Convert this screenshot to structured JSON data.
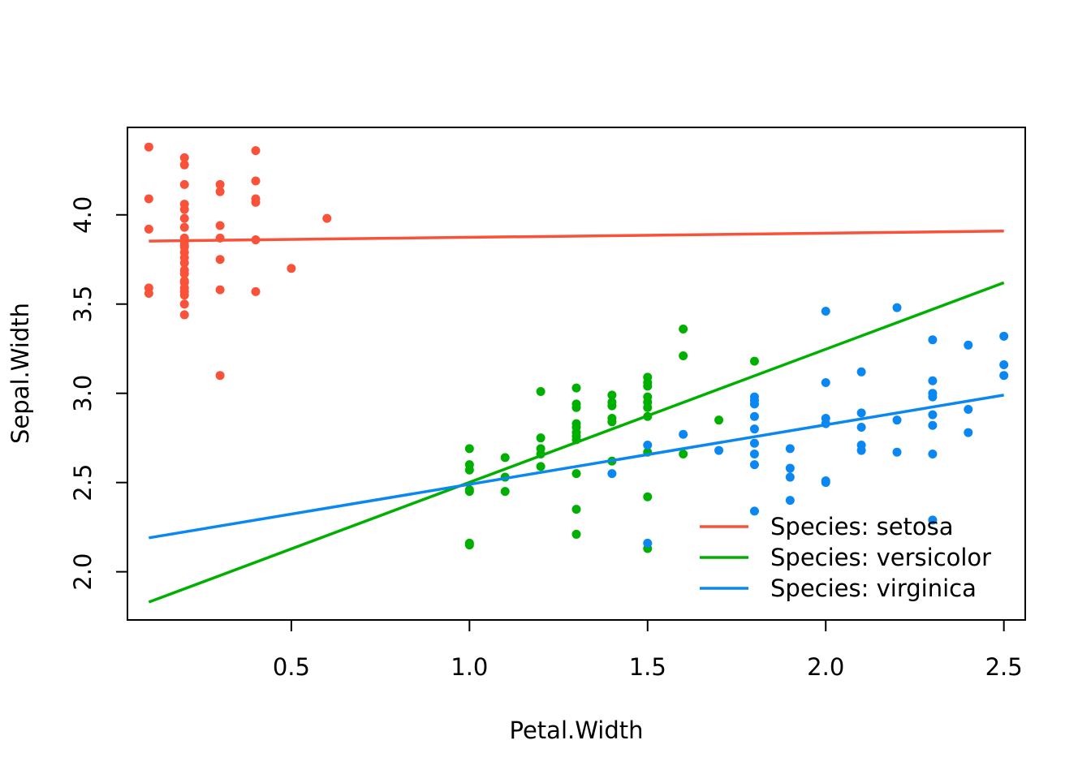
{
  "chart_data": {
    "type": "scatter",
    "title": "",
    "xlabel": "Petal.Width",
    "ylabel": "Sepal.Width",
    "xlim": [
      0.04,
      2.56
    ],
    "ylim": [
      1.73,
      4.49
    ],
    "x_ticks": [
      0.5,
      1.0,
      1.5,
      2.0,
      2.5
    ],
    "x_tick_labels": [
      "0.5",
      "1.0",
      "1.5",
      "2.0",
      "2.5"
    ],
    "y_ticks": [
      2.0,
      2.5,
      3.0,
      3.5,
      4.0
    ],
    "y_tick_labels": [
      "2.0",
      "2.5",
      "3.0",
      "3.5",
      "4.0"
    ],
    "grid": false,
    "legend_position": "bottom-right",
    "series": [
      {
        "name": "Species: setosa",
        "color": "#F8523A",
        "fit_line": [
          [
            0.1,
            3.853
          ],
          [
            2.5,
            3.909
          ]
        ],
        "points": [
          [
            0.1,
            4.38
          ],
          [
            0.1,
            4.09
          ],
          [
            0.1,
            3.92
          ],
          [
            0.1,
            3.59
          ],
          [
            0.1,
            3.56
          ],
          [
            0.2,
            4.32
          ],
          [
            0.2,
            4.28
          ],
          [
            0.2,
            4.17
          ],
          [
            0.2,
            4.06
          ],
          [
            0.2,
            4.03
          ],
          [
            0.2,
            3.98
          ],
          [
            0.2,
            3.93
          ],
          [
            0.2,
            3.87
          ],
          [
            0.2,
            3.85
          ],
          [
            0.2,
            3.83
          ],
          [
            0.2,
            3.82
          ],
          [
            0.2,
            3.79
          ],
          [
            0.2,
            3.76
          ],
          [
            0.2,
            3.73
          ],
          [
            0.2,
            3.69
          ],
          [
            0.2,
            3.67
          ],
          [
            0.2,
            3.63
          ],
          [
            0.2,
            3.62
          ],
          [
            0.2,
            3.59
          ],
          [
            0.2,
            3.57
          ],
          [
            0.2,
            3.55
          ],
          [
            0.2,
            3.5
          ],
          [
            0.2,
            3.44
          ],
          [
            0.3,
            4.17
          ],
          [
            0.3,
            4.13
          ],
          [
            0.3,
            3.94
          ],
          [
            0.3,
            3.87
          ],
          [
            0.3,
            3.75
          ],
          [
            0.3,
            3.58
          ],
          [
            0.3,
            3.1
          ],
          [
            0.4,
            4.36
          ],
          [
            0.4,
            4.19
          ],
          [
            0.4,
            4.09
          ],
          [
            0.4,
            4.07
          ],
          [
            0.4,
            3.86
          ],
          [
            0.4,
            3.57
          ],
          [
            0.5,
            3.7
          ],
          [
            0.6,
            3.98
          ]
        ]
      },
      {
        "name": "Species: versicolor",
        "color": "#00B000",
        "fit_line": [
          [
            0.1,
            1.83
          ],
          [
            2.5,
            3.62
          ]
        ],
        "points": [
          [
            1.0,
            2.69
          ],
          [
            1.0,
            2.6
          ],
          [
            1.0,
            2.57
          ],
          [
            1.0,
            2.45
          ],
          [
            1.0,
            2.46
          ],
          [
            1.0,
            2.15
          ],
          [
            1.0,
            2.16
          ],
          [
            1.1,
            2.64
          ],
          [
            1.1,
            2.53
          ],
          [
            1.1,
            2.45
          ],
          [
            1.2,
            3.01
          ],
          [
            1.2,
            2.75
          ],
          [
            1.2,
            2.69
          ],
          [
            1.2,
            2.66
          ],
          [
            1.2,
            2.59
          ],
          [
            1.3,
            3.03
          ],
          [
            1.3,
            2.94
          ],
          [
            1.3,
            2.92
          ],
          [
            1.3,
            2.83
          ],
          [
            1.3,
            2.81
          ],
          [
            1.3,
            2.78
          ],
          [
            1.3,
            2.76
          ],
          [
            1.3,
            2.74
          ],
          [
            1.3,
            2.55
          ],
          [
            1.3,
            2.35
          ],
          [
            1.3,
            2.21
          ],
          [
            1.4,
            2.99
          ],
          [
            1.4,
            2.95
          ],
          [
            1.4,
            2.93
          ],
          [
            1.4,
            2.86
          ],
          [
            1.4,
            2.84
          ],
          [
            1.4,
            2.62
          ],
          [
            1.5,
            3.09
          ],
          [
            1.5,
            3.06
          ],
          [
            1.5,
            3.04
          ],
          [
            1.5,
            2.98
          ],
          [
            1.5,
            2.95
          ],
          [
            1.5,
            2.92
          ],
          [
            1.5,
            2.87
          ],
          [
            1.5,
            2.67
          ],
          [
            1.5,
            2.42
          ],
          [
            1.5,
            2.13
          ],
          [
            1.6,
            3.36
          ],
          [
            1.6,
            3.21
          ],
          [
            1.6,
            2.66
          ],
          [
            1.7,
            2.85
          ],
          [
            1.8,
            3.18
          ]
        ]
      },
      {
        "name": "Species: virginica",
        "color": "#0A87F0",
        "fit_line": [
          [
            0.1,
            2.19
          ],
          [
            2.5,
            2.99
          ]
        ],
        "points": [
          [
            1.4,
            2.55
          ],
          [
            1.5,
            2.71
          ],
          [
            1.5,
            2.16
          ],
          [
            1.6,
            2.77
          ],
          [
            1.7,
            2.68
          ],
          [
            1.8,
            2.98
          ],
          [
            1.8,
            2.96
          ],
          [
            1.8,
            2.94
          ],
          [
            1.8,
            2.87
          ],
          [
            1.8,
            2.8
          ],
          [
            1.8,
            2.72
          ],
          [
            1.8,
            2.66
          ],
          [
            1.8,
            2.6
          ],
          [
            1.8,
            2.34
          ],
          [
            1.9,
            2.69
          ],
          [
            1.9,
            2.58
          ],
          [
            1.9,
            2.53
          ],
          [
            1.9,
            2.4
          ],
          [
            2.0,
            3.46
          ],
          [
            2.0,
            3.06
          ],
          [
            2.0,
            2.86
          ],
          [
            2.0,
            2.83
          ],
          [
            2.0,
            2.51
          ],
          [
            2.0,
            2.5
          ],
          [
            2.1,
            3.12
          ],
          [
            2.1,
            2.89
          ],
          [
            2.1,
            2.81
          ],
          [
            2.1,
            2.71
          ],
          [
            2.1,
            2.68
          ],
          [
            2.2,
            3.48
          ],
          [
            2.2,
            2.85
          ],
          [
            2.2,
            2.67
          ],
          [
            2.3,
            3.3
          ],
          [
            2.3,
            3.07
          ],
          [
            2.3,
            3.0
          ],
          [
            2.3,
            2.98
          ],
          [
            2.3,
            2.88
          ],
          [
            2.3,
            2.82
          ],
          [
            2.3,
            2.66
          ],
          [
            2.3,
            2.29
          ],
          [
            2.4,
            3.27
          ],
          [
            2.4,
            2.91
          ],
          [
            2.4,
            2.78
          ],
          [
            2.5,
            3.32
          ],
          [
            2.5,
            3.16
          ],
          [
            2.5,
            3.1
          ]
        ]
      }
    ]
  }
}
